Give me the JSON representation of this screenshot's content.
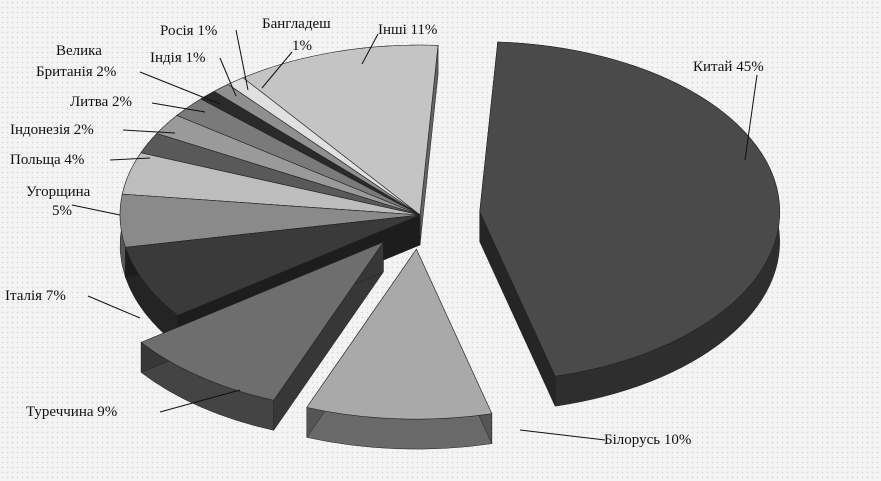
{
  "chart_data": {
    "type": "pie",
    "title": "",
    "legend": "none",
    "slices": [
      {
        "label": "Китай 45%",
        "name": "Китай",
        "value": 45,
        "color": "#4a4a4a"
      },
      {
        "label": "Білорусь 10%",
        "name": "Білорусь",
        "value": 10,
        "color": "#a9a9a9"
      },
      {
        "label": "Туреччина 9%",
        "name": "Туреччина",
        "value": 9,
        "color": "#6e6e6e"
      },
      {
        "label": "Італія 7%",
        "name": "Італія",
        "value": 7,
        "color": "#3a3a3a"
      },
      {
        "label": "Угорщина 5%",
        "name": "Угорщина",
        "value": 5,
        "color": "#8a8a8a"
      },
      {
        "label": "Польща 4%",
        "name": "Польща",
        "value": 4,
        "color": "#bdbdbd"
      },
      {
        "label": "Індонезія 2%",
        "name": "Індонезія",
        "value": 2,
        "color": "#595959"
      },
      {
        "label": "Литва 2%",
        "name": "Литва",
        "value": 2,
        "color": "#9a9a9a"
      },
      {
        "label": "Велика Британія 2%",
        "name": "Велика Британія",
        "value": 2,
        "color": "#7a7a7a"
      },
      {
        "label": "Індія 1%",
        "name": "Індія",
        "value": 1,
        "color": "#2a2a2a"
      },
      {
        "label": "Росія 1%",
        "name": "Росія",
        "value": 1,
        "color": "#8f8f8f"
      },
      {
        "label": "Бангладеш 1%",
        "name": "Бангладеш",
        "value": 1,
        "color": "#e0e0e0"
      },
      {
        "label": "Інші 11%",
        "name": "Інші",
        "value": 11,
        "color": "#c4c4c4"
      }
    ]
  }
}
